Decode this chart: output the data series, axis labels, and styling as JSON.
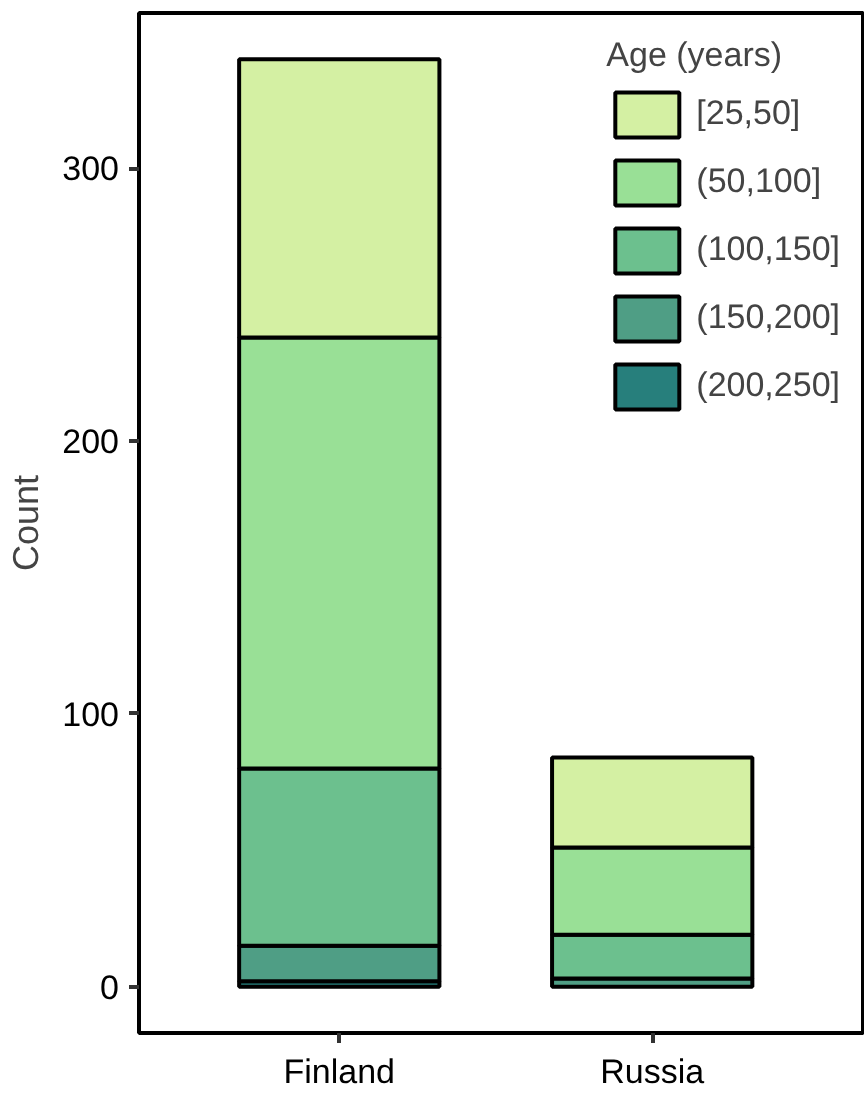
{
  "chart_data": {
    "type": "bar",
    "stacked": true,
    "categories": [
      "Finland",
      "Russia"
    ],
    "ylabel": "Count",
    "legend_title": "Age (years)",
    "legend": "top right",
    "ylim": [
      -17,
      357
    ],
    "yticks": [
      0,
      100,
      200,
      300
    ],
    "grid": false,
    "series": [
      {
        "name": "(200,250]",
        "color": "#277f7c",
        "values": [
          2,
          null
        ]
      },
      {
        "name": "(150,200]",
        "color": "#4f9e85",
        "values": [
          13,
          3
        ]
      },
      {
        "name": "(100,150]",
        "color": "#6cc08e",
        "values": [
          65,
          16
        ]
      },
      {
        "name": "(50,100]",
        "color": "#99e096",
        "values": [
          158,
          32
        ]
      },
      {
        "name": "[25,50]",
        "color": "#d4f0a3",
        "values": [
          102,
          33
        ]
      }
    ]
  }
}
